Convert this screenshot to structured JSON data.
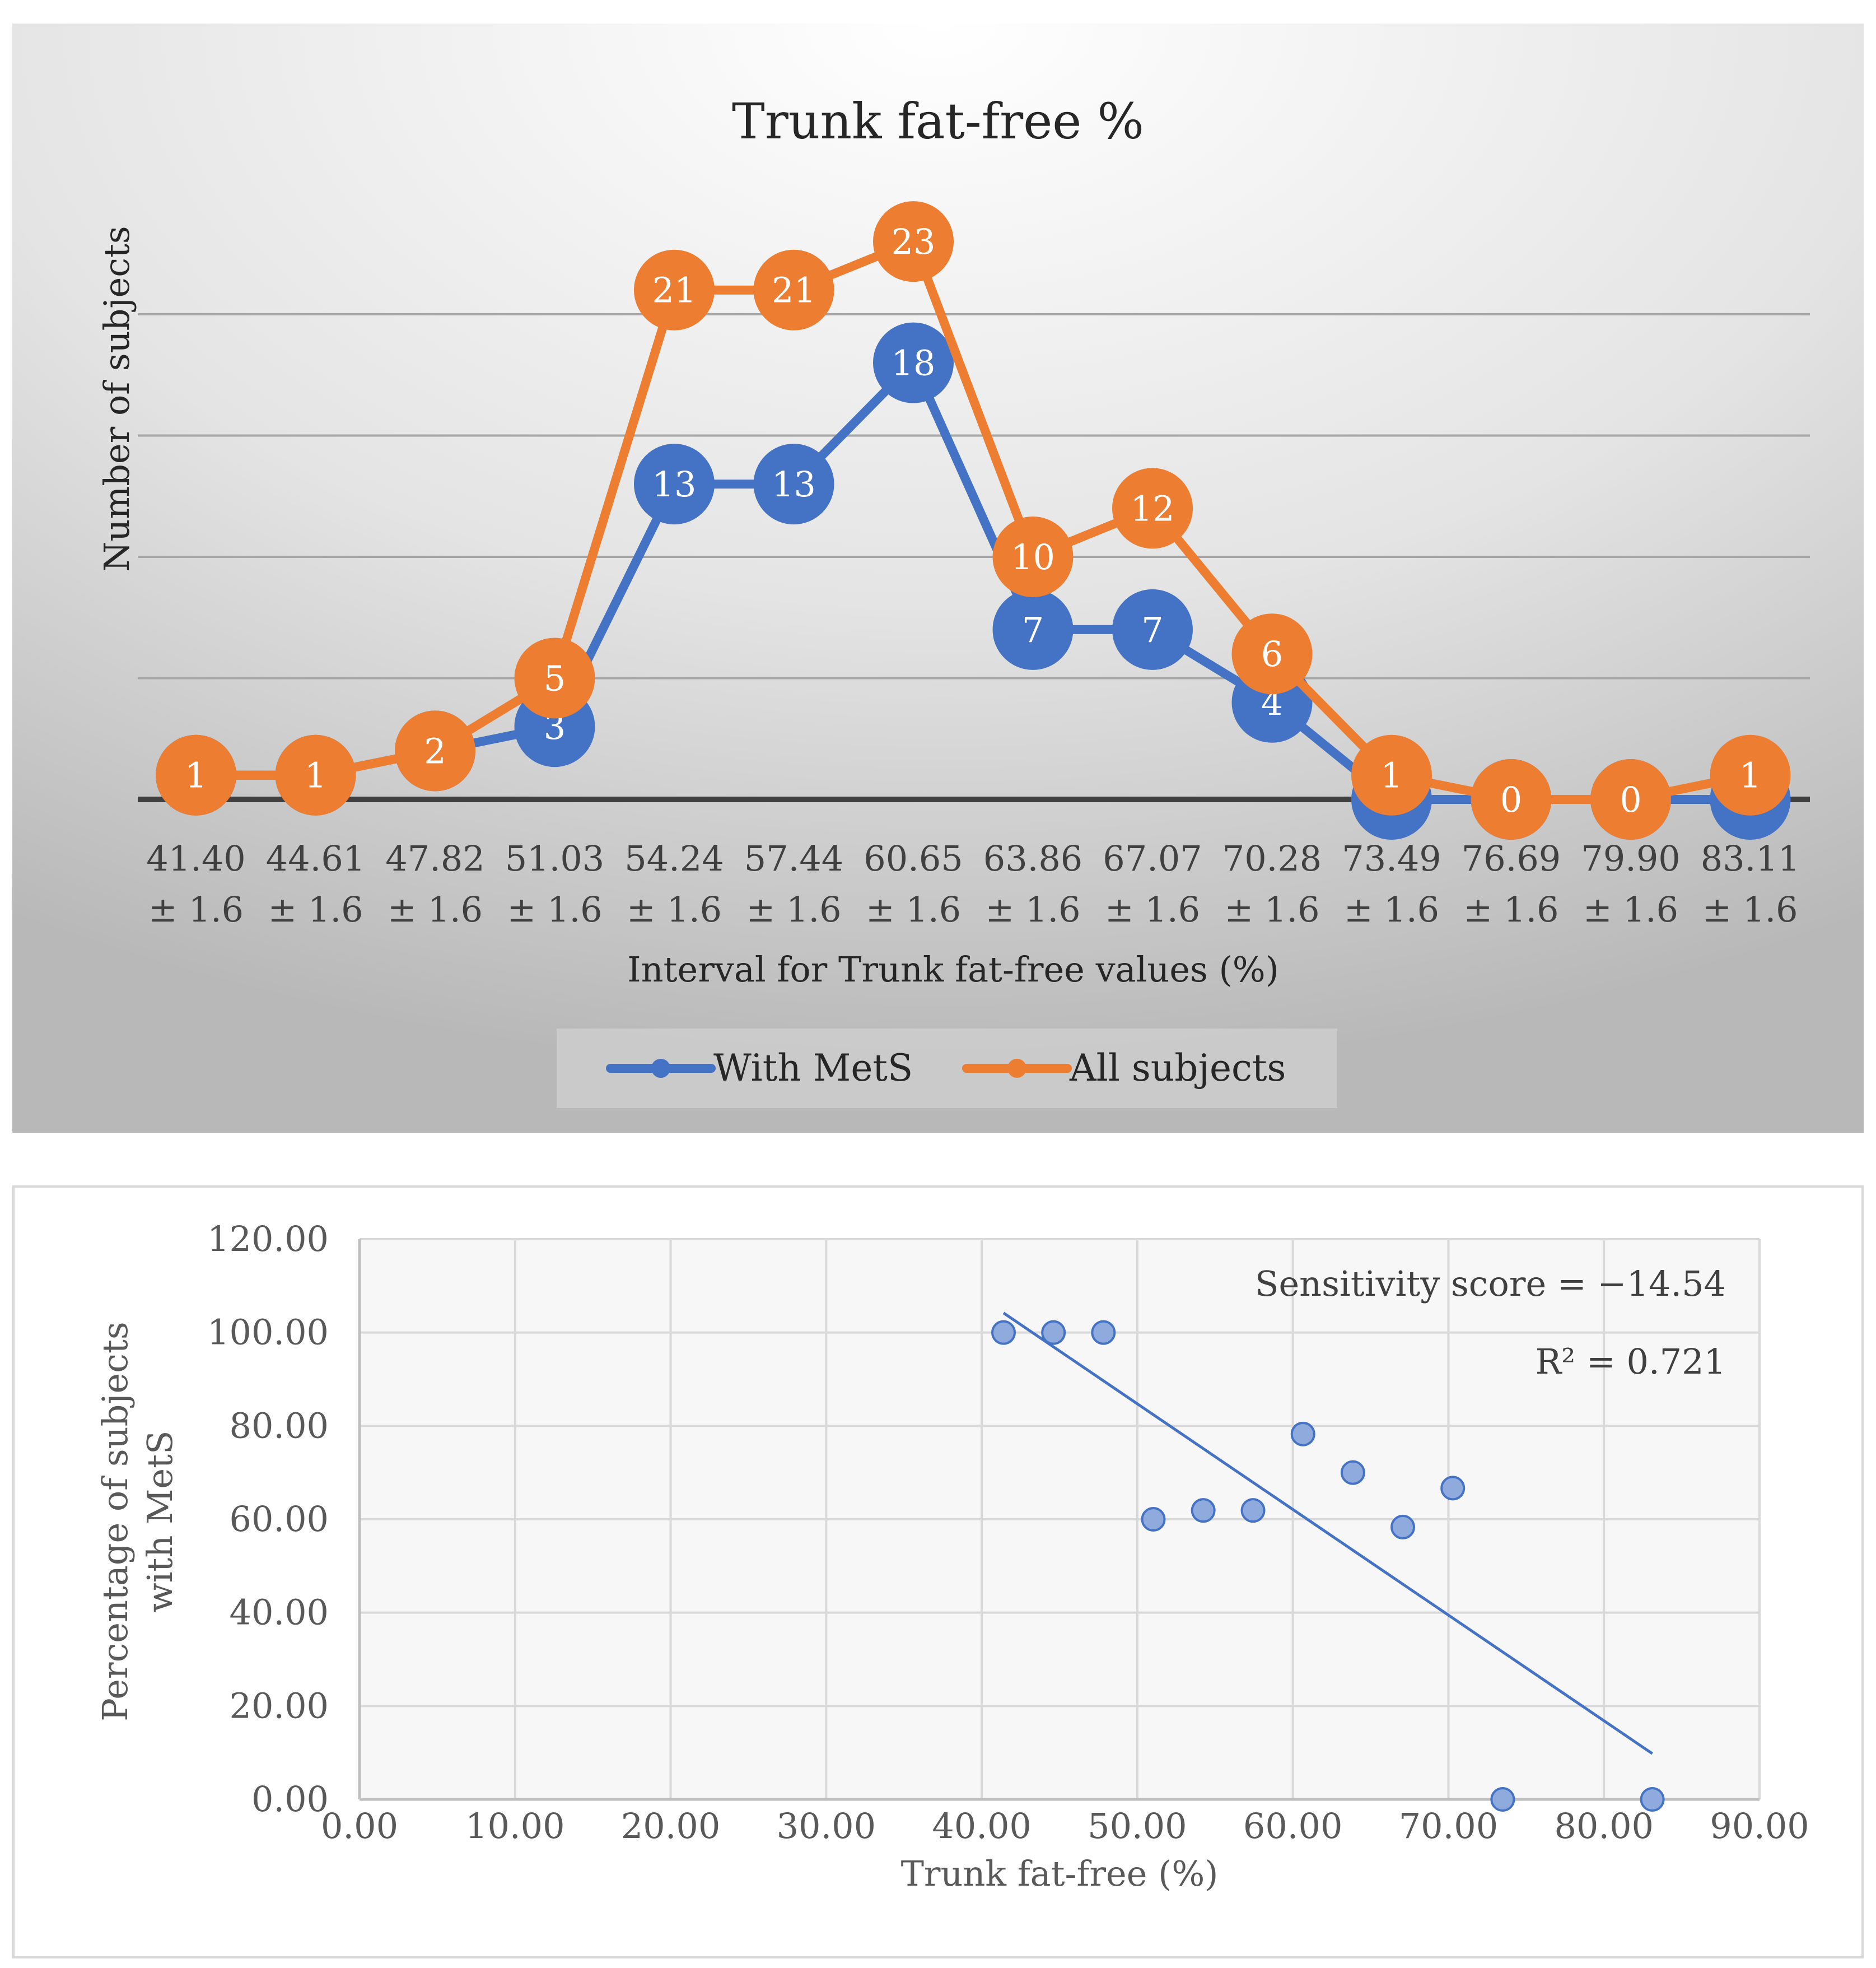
{
  "chart_data": [
    {
      "type": "line",
      "title": "Trunk fat-free %",
      "xlabel": "Interval for Trunk fat-free values (%)",
      "ylabel": "Number of subjects",
      "ylim": [
        0,
        25
      ],
      "grid": true,
      "legend": "bottom",
      "categories": [
        [
          "41.40",
          "± 1.6"
        ],
        [
          "44.61",
          "± 1.6"
        ],
        [
          "47.82",
          "± 1.6"
        ],
        [
          "51.03",
          "± 1.6"
        ],
        [
          "54.24",
          "± 1.6"
        ],
        [
          "57.44",
          "± 1.6"
        ],
        [
          "60.65",
          "± 1.6"
        ],
        [
          "63.86",
          "± 1.6"
        ],
        [
          "67.07",
          "± 1.6"
        ],
        [
          "70.28",
          "± 1.6"
        ],
        [
          "73.49",
          "± 1.6"
        ],
        [
          "76.69",
          "± 1.6"
        ],
        [
          "79.90",
          "± 1.6"
        ],
        [
          "83.11",
          "± 1.6"
        ]
      ],
      "series": [
        {
          "name": "With MetS",
          "color": "#4472C4",
          "values": [
            1,
            1,
            2,
            3,
            13,
            13,
            18,
            7,
            7,
            4,
            0,
            0,
            0,
            0
          ]
        },
        {
          "name": "All subjects",
          "color": "#ED7D31",
          "values": [
            1,
            1,
            2,
            5,
            21,
            21,
            23,
            10,
            12,
            6,
            1,
            0,
            0,
            1
          ]
        }
      ]
    },
    {
      "type": "scatter",
      "title": "",
      "xlabel": "Trunk fat-free (%)",
      "ylabel": [
        "Percentage of subjects",
        "with MetS"
      ],
      "xlim": [
        0,
        90
      ],
      "ylim": [
        0,
        120
      ],
      "xticks": [
        "0.00",
        "10.00",
        "20.00",
        "30.00",
        "40.00",
        "50.00",
        "60.00",
        "70.00",
        "80.00",
        "90.00"
      ],
      "yticks": [
        "0.00",
        "20.00",
        "40.00",
        "60.00",
        "80.00",
        "100.00",
        "120.00"
      ],
      "grid": true,
      "point_color": "#8FAADC",
      "x": [
        41.4,
        44.61,
        47.82,
        51.03,
        54.24,
        57.44,
        60.65,
        63.86,
        67.07,
        70.28,
        73.49,
        83.11
      ],
      "y": [
        100,
        100,
        100,
        60,
        61.9,
        61.9,
        78.26,
        70,
        58.33,
        66.67,
        0,
        0
      ],
      "trendline": {
        "x": [
          41.4,
          83.11
        ],
        "y": [
          104.2,
          9.8
        ]
      },
      "annotations": [
        "Sensitivity score = −14.54",
        "R² = 0.721"
      ]
    }
  ]
}
